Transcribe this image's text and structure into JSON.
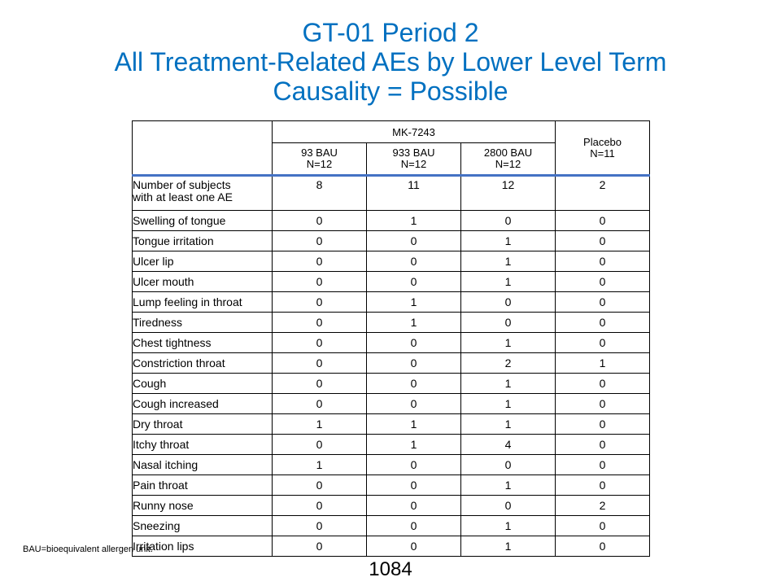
{
  "title": {
    "line1": "GT-01 Period 2",
    "line2": "All Treatment-Related AEs by Lower Level Term",
    "line3": "Causality = Possible"
  },
  "table": {
    "group_header": "MK-7243",
    "columns": [
      {
        "dose": "93 BAU",
        "n": "N=12"
      },
      {
        "dose": "933 BAU",
        "n": "N=12"
      },
      {
        "dose": "2800 BAU",
        "n": "N=12"
      }
    ],
    "placebo": {
      "label": "Placebo",
      "n": "N=11"
    },
    "summary_row": {
      "label_line1": "Number of subjects",
      "label_line2": "with at least one AE",
      "values": [
        "8",
        "11",
        "12",
        "2"
      ]
    },
    "rows": [
      {
        "term": "Swelling of tongue",
        "values": [
          "0",
          "1",
          "0",
          "0"
        ]
      },
      {
        "term": "Tongue irritation",
        "values": [
          "0",
          "0",
          "1",
          "0"
        ]
      },
      {
        "term": "Ulcer lip",
        "values": [
          "0",
          "0",
          "1",
          "0"
        ]
      },
      {
        "term": "Ulcer mouth",
        "values": [
          "0",
          "0",
          "1",
          "0"
        ]
      },
      {
        "term": "Lump feeling in throat",
        "values": [
          "0",
          "1",
          "0",
          "0"
        ]
      },
      {
        "term": "Tiredness",
        "values": [
          "0",
          "1",
          "0",
          "0"
        ]
      },
      {
        "term": "Chest tightness",
        "values": [
          "0",
          "0",
          "1",
          "0"
        ]
      },
      {
        "term": "Constriction throat",
        "values": [
          "0",
          "0",
          "2",
          "1"
        ]
      },
      {
        "term": "Cough",
        "values": [
          "0",
          "0",
          "1",
          "0"
        ]
      },
      {
        "term": "Cough increased",
        "values": [
          "0",
          "0",
          "1",
          "0"
        ]
      },
      {
        "term": "Dry throat",
        "values": [
          "1",
          "1",
          "1",
          "0"
        ]
      },
      {
        "term": "Itchy throat",
        "values": [
          "0",
          "1",
          "4",
          "0"
        ]
      },
      {
        "term": "Nasal itching",
        "values": [
          "1",
          "0",
          "0",
          "0"
        ]
      },
      {
        "term": "Pain throat",
        "values": [
          "0",
          "0",
          "1",
          "0"
        ]
      },
      {
        "term": "Runny nose",
        "values": [
          "0",
          "0",
          "0",
          "2"
        ]
      },
      {
        "term": "Sneezing",
        "values": [
          "0",
          "0",
          "1",
          "0"
        ]
      },
      {
        "term": "Irritation lips",
        "values": [
          "0",
          "0",
          "1",
          "0"
        ]
      }
    ]
  },
  "footnote": "BAU=bioequivalent allergen unit.",
  "page_number": "1084",
  "colors": {
    "title": "#0070C0",
    "header_rule": "#4472C4"
  }
}
